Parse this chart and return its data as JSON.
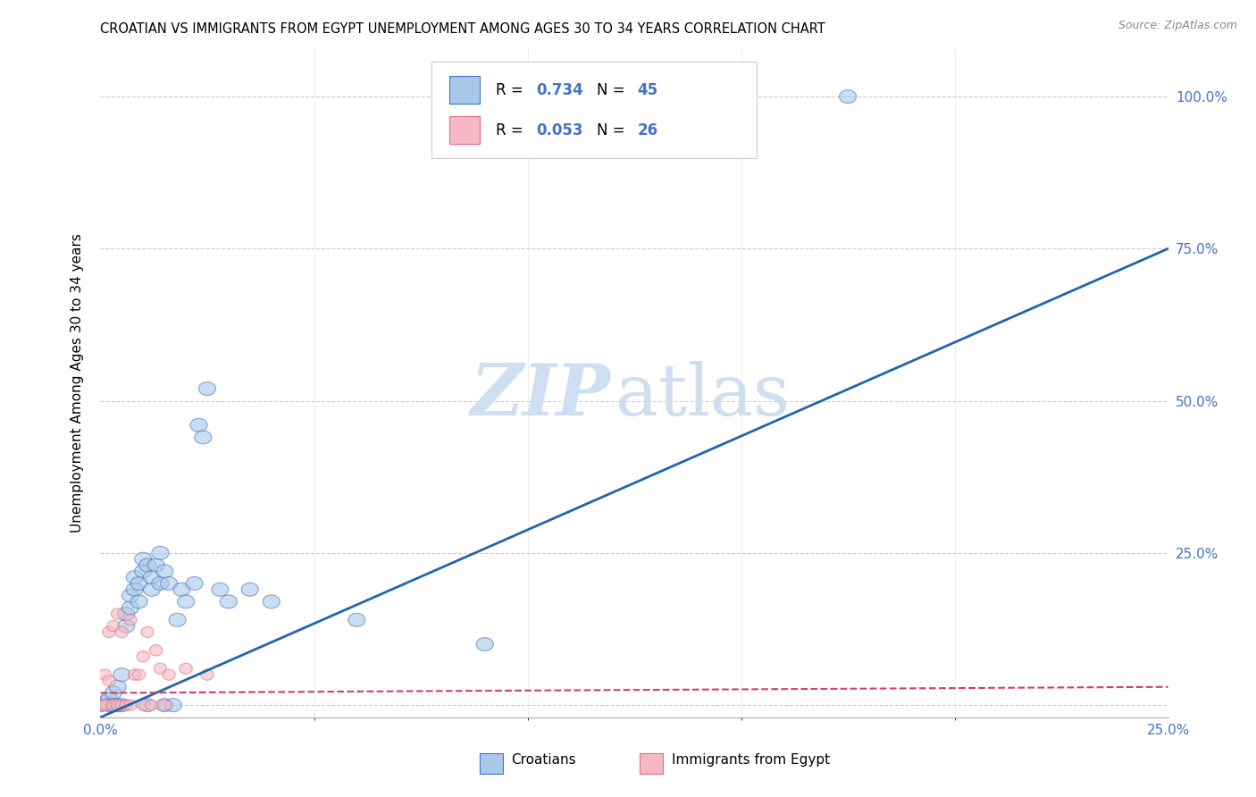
{
  "title": "CROATIAN VS IMMIGRANTS FROM EGYPT UNEMPLOYMENT AMONG AGES 30 TO 34 YEARS CORRELATION CHART",
  "source": "Source: ZipAtlas.com",
  "ylabel": "Unemployment Among Ages 30 to 34 years",
  "xlim": [
    0.0,
    0.25
  ],
  "ylim": [
    -0.02,
    1.08
  ],
  "xtick_positions": [
    0.0,
    0.25
  ],
  "xticklabels": [
    "0.0%",
    "25.0%"
  ],
  "ytick_positions": [
    0.0,
    0.25,
    0.5,
    0.75,
    1.0
  ],
  "yticklabels": [
    "",
    "25.0%",
    "50.0%",
    "75.0%",
    "100.0%"
  ],
  "croatian_R": 0.734,
  "croatian_N": 45,
  "egypt_R": 0.053,
  "egypt_N": 26,
  "blue_fill": "#a8c8e8",
  "blue_edge": "#4472c4",
  "pink_fill": "#f5b8c4",
  "pink_edge": "#e07080",
  "blue_line_color": "#2166ac",
  "pink_line_color": "#d04060",
  "grid_color": "#cccccc",
  "title_fontsize": 10.5,
  "croatian_points": [
    [
      0.0,
      0.0
    ],
    [
      0.001,
      0.005
    ],
    [
      0.002,
      0.01
    ],
    [
      0.002,
      0.0
    ],
    [
      0.003,
      0.02
    ],
    [
      0.003,
      0.0
    ],
    [
      0.004,
      0.0
    ],
    [
      0.004,
      0.03
    ],
    [
      0.005,
      0.05
    ],
    [
      0.005,
      0.0
    ],
    [
      0.006,
      0.13
    ],
    [
      0.006,
      0.15
    ],
    [
      0.007,
      0.16
    ],
    [
      0.007,
      0.18
    ],
    [
      0.008,
      0.19
    ],
    [
      0.008,
      0.21
    ],
    [
      0.009,
      0.17
    ],
    [
      0.009,
      0.2
    ],
    [
      0.01,
      0.22
    ],
    [
      0.01,
      0.24
    ],
    [
      0.011,
      0.23
    ],
    [
      0.011,
      0.0
    ],
    [
      0.012,
      0.19
    ],
    [
      0.012,
      0.21
    ],
    [
      0.013,
      0.23
    ],
    [
      0.014,
      0.25
    ],
    [
      0.014,
      0.2
    ],
    [
      0.015,
      0.22
    ],
    [
      0.015,
      0.0
    ],
    [
      0.016,
      0.2
    ],
    [
      0.017,
      0.0
    ],
    [
      0.018,
      0.14
    ],
    [
      0.019,
      0.19
    ],
    [
      0.02,
      0.17
    ],
    [
      0.022,
      0.2
    ],
    [
      0.023,
      0.46
    ],
    [
      0.024,
      0.44
    ],
    [
      0.025,
      0.52
    ],
    [
      0.028,
      0.19
    ],
    [
      0.03,
      0.17
    ],
    [
      0.035,
      0.19
    ],
    [
      0.04,
      0.17
    ],
    [
      0.06,
      0.14
    ],
    [
      0.09,
      0.1
    ],
    [
      0.175,
      1.0
    ]
  ],
  "egypt_points": [
    [
      0.0,
      0.0
    ],
    [
      0.001,
      0.0
    ],
    [
      0.001,
      0.05
    ],
    [
      0.002,
      0.04
    ],
    [
      0.002,
      0.12
    ],
    [
      0.003,
      0.0
    ],
    [
      0.003,
      0.13
    ],
    [
      0.004,
      0.15
    ],
    [
      0.004,
      0.0
    ],
    [
      0.005,
      0.12
    ],
    [
      0.005,
      0.0
    ],
    [
      0.006,
      0.0
    ],
    [
      0.007,
      0.0
    ],
    [
      0.007,
      0.14
    ],
    [
      0.008,
      0.05
    ],
    [
      0.009,
      0.05
    ],
    [
      0.01,
      0.08
    ],
    [
      0.01,
      0.0
    ],
    [
      0.011,
      0.12
    ],
    [
      0.012,
      0.0
    ],
    [
      0.013,
      0.09
    ],
    [
      0.014,
      0.06
    ],
    [
      0.015,
      0.0
    ],
    [
      0.016,
      0.05
    ],
    [
      0.02,
      0.06
    ],
    [
      0.025,
      0.05
    ]
  ],
  "blue_regression": [
    0.0,
    -0.02,
    0.25,
    0.75
  ],
  "pink_regression_y": 0.02
}
